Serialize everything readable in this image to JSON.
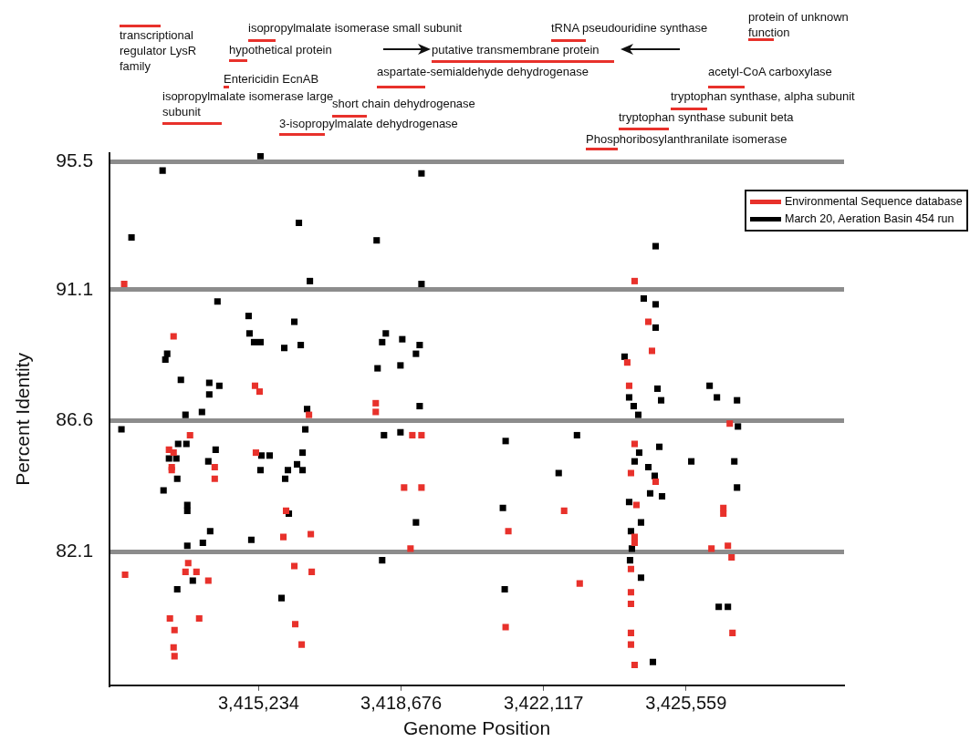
{
  "chart_data": {
    "type": "scatter",
    "xlabel": "Genome Position",
    "ylabel": "Percent Identity",
    "xlim": [
      3411632,
      3429378
    ],
    "ylim": [
      77.5,
      95.8
    ],
    "xticks": [
      {
        "value": 3415234,
        "label": "3,415,234"
      },
      {
        "value": 3418676,
        "label": "3,418,676"
      },
      {
        "value": 3422117,
        "label": "3,422,117"
      },
      {
        "value": 3425559,
        "label": "3,425,559"
      }
    ],
    "yticks": [
      82.1,
      86.6,
      91.1,
      95.5
    ],
    "grid": "y",
    "legend": "top right",
    "marker": "square",
    "series": [
      {
        "name": "Environmental Sequence database",
        "color": "#e8312b",
        "x": [
          3411985,
          3413179,
          3415146,
          3415256,
          3416450,
          3418063,
          3418063,
          3413576,
          3418947,
          3413068,
          3413179,
          3415168,
          3413134,
          3413134,
          3414173,
          3414173,
          3418748,
          3415897,
          3415831,
          3416494,
          3418903,
          3412007,
          3413532,
          3413466,
          3413731,
          3414018,
          3416096,
          3416516,
          3413090,
          3413797,
          3413201,
          3416118,
          3416273,
          3413179,
          3413201,
          3424317,
          3424649,
          3424737,
          3424140,
          3424185,
          3426616,
          3419168,
          3424317,
          3424229,
          3424825,
          3419168,
          3424361,
          3426461,
          3426461,
          3422615,
          3421267,
          3424317,
          3424317,
          3426571,
          3426174,
          3426660,
          3424229,
          3422991,
          3424229,
          3424229,
          3421201,
          3424229,
          3426682,
          3424229,
          3424317
        ],
        "values": [
          91.3,
          89.5,
          87.8,
          87.6,
          86.8,
          87.2,
          86.9,
          86.1,
          86.1,
          85.6,
          85.5,
          85.5,
          85.0,
          84.9,
          85.0,
          84.6,
          84.3,
          83.5,
          82.6,
          82.7,
          82.2,
          81.3,
          81.7,
          81.4,
          81.4,
          81.1,
          81.6,
          81.4,
          79.8,
          79.8,
          79.4,
          79.6,
          78.9,
          78.8,
          78.5,
          91.4,
          90.0,
          89.0,
          88.6,
          87.8,
          86.5,
          86.1,
          85.8,
          84.8,
          84.5,
          84.3,
          83.7,
          83.6,
          83.4,
          83.5,
          82.8,
          82.6,
          82.4,
          82.3,
          82.2,
          81.9,
          81.5,
          81.0,
          80.7,
          80.3,
          79.5,
          79.3,
          79.3,
          78.9,
          78.2
        ]
      },
      {
        "name": "March 20, Aeration Basin 454 run",
        "color": "#000000",
        "x": [
          3412913,
          3419168,
          3416206,
          3412162,
          3418085,
          3416472,
          3419168,
          3415278,
          3414239,
          3414991,
          3416096,
          3418306,
          3415013,
          3415124,
          3415278,
          3415853,
          3416251,
          3418218,
          3418704,
          3419124,
          3413024,
          3412980,
          3419035,
          3418660,
          3418107,
          3413355,
          3414041,
          3414284,
          3414041,
          3419124,
          3416405,
          3413466,
          3413864,
          3411919,
          3416361,
          3418262,
          3418660,
          3413289,
          3413488,
          3414195,
          3416295,
          3415300,
          3415499,
          3413068,
          3413245,
          3414018,
          3416162,
          3415278,
          3415941,
          3416295,
          3415875,
          3413267,
          3412936,
          3413510,
          3413510,
          3419035,
          3414063,
          3413886,
          3415057,
          3413510,
          3415963,
          3418218,
          3413267,
          3413643,
          3415787,
          3424825,
          3424538,
          3424825,
          3424825,
          3424074,
          3424870,
          3426129,
          3424185,
          3424958,
          3426306,
          3426792,
          3424295,
          3424406,
          3426814,
          3422925,
          3421201,
          3424914,
          3424428,
          3424317,
          3425687,
          3426726,
          3422483,
          3424649,
          3424803,
          3426792,
          3424693,
          3424980,
          3424185,
          3421135,
          3424472,
          3424229,
          3424251,
          3424207,
          3424472,
          3421179,
          3426350,
          3426571,
          3424759
        ],
        "values": [
          95.2,
          95.1,
          93.4,
          92.9,
          92.8,
          91.4,
          91.3,
          95.7,
          90.7,
          90.2,
          90.0,
          89.6,
          89.6,
          89.3,
          89.3,
          89.1,
          89.2,
          89.3,
          89.4,
          89.2,
          88.9,
          88.7,
          88.9,
          88.5,
          88.4,
          88.0,
          87.9,
          87.8,
          87.5,
          87.1,
          87.0,
          86.8,
          86.9,
          86.3,
          86.3,
          86.1,
          86.2,
          85.8,
          85.8,
          85.6,
          85.5,
          85.4,
          85.4,
          85.3,
          85.3,
          85.2,
          85.1,
          84.9,
          84.9,
          84.9,
          84.6,
          84.6,
          84.2,
          83.7,
          83.5,
          83.1,
          82.8,
          82.4,
          82.5,
          82.3,
          83.4,
          81.8,
          80.8,
          81.1,
          80.5,
          92.6,
          90.8,
          90.6,
          89.8,
          88.8,
          87.7,
          87.8,
          87.4,
          87.3,
          87.4,
          87.3,
          87.1,
          86.8,
          86.4,
          86.1,
          85.9,
          85.7,
          85.5,
          85.2,
          85.2,
          85.2,
          84.8,
          85.0,
          84.7,
          84.3,
          84.1,
          84.0,
          83.8,
          83.6,
          83.1,
          82.8,
          82.2,
          81.8,
          81.2,
          80.8,
          80.2,
          80.2,
          78.3
        ]
      }
    ],
    "annotations": [
      "transcriptional regulator LysR family",
      "isopropylmalate isomerase small subunit",
      "hypothetical protein",
      "Entericidin EcnAB",
      "isopropylmalate isomerase large subunit",
      "short chain dehydrogenase",
      "3-isopropylmalate dehydrogenase",
      "putative transmembrane protein",
      "aspartate-semialdehyde dehydrogenase",
      "tRNA pseudouridine synthase",
      "protein of unknown function",
      "acetyl-CoA carboxylase",
      "tryptophan synthase, alpha subunit",
      "tryptophan synthase subunit beta",
      "Phosphoribosylanthranilate isomerase"
    ]
  }
}
